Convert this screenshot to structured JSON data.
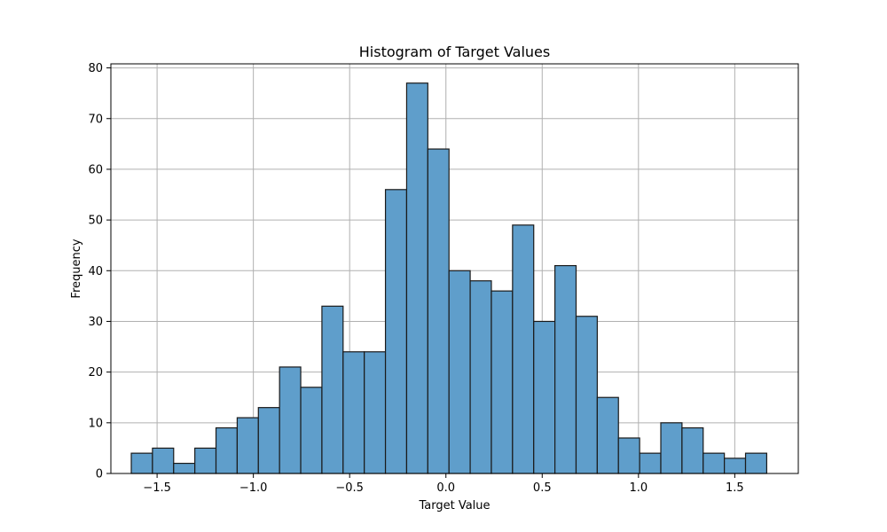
{
  "chart_data": {
    "type": "bar",
    "title": "Histogram of Target Values",
    "xlabel": "Target Value",
    "ylabel": "Frequency",
    "xlim": [
      -1.74,
      1.83
    ],
    "ylim": [
      0,
      80.8
    ],
    "grid": true,
    "bar_color": "#5f9ecb",
    "edge_color": "#1a1a1a",
    "grid_color": "#b0b0b0",
    "x_ticks": [
      -1.5,
      -1.0,
      -0.5,
      0.0,
      0.5,
      1.0,
      1.5
    ],
    "x_tick_labels": [
      "−1.5",
      "−1.0",
      "−0.5",
      "0.0",
      "0.5",
      "1.0",
      "1.5"
    ],
    "y_ticks": [
      0,
      10,
      20,
      30,
      40,
      50,
      60,
      70,
      80
    ],
    "y_tick_labels": [
      "0",
      "10",
      "20",
      "30",
      "40",
      "50",
      "60",
      "70",
      "80"
    ],
    "bin_start": -1.634,
    "bin_width": 0.11,
    "values": [
      4,
      5,
      2,
      5,
      9,
      11,
      13,
      21,
      17,
      33,
      24,
      24,
      56,
      77,
      64,
      40,
      38,
      36,
      49,
      30,
      41,
      31,
      15,
      7,
      4,
      10,
      9,
      4,
      3,
      4
    ]
  }
}
